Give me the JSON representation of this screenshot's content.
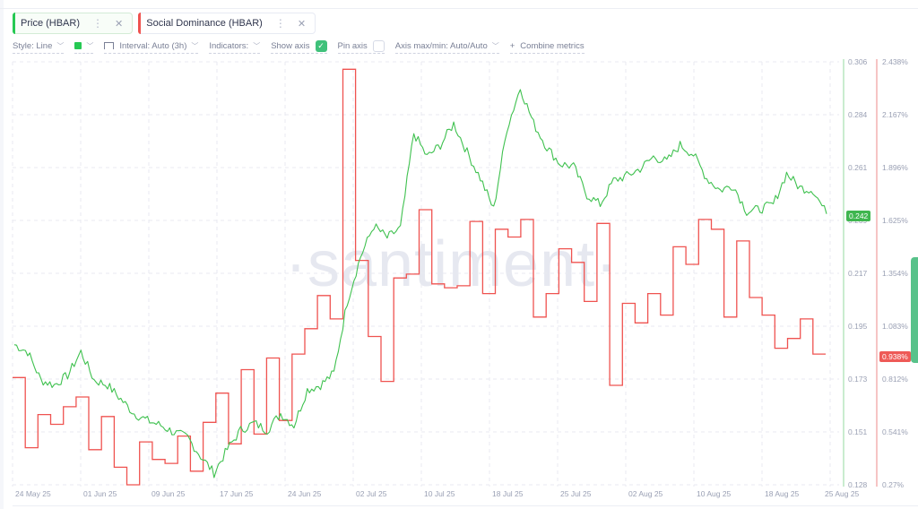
{
  "metrics": [
    {
      "label": "Price (HBAR)",
      "color": "#26c953",
      "menu_icon": "more-vertical-icon",
      "close_icon": "close-icon"
    },
    {
      "label": "Social Dominance (HBAR)",
      "color": "#ef5350",
      "menu_icon": "more-vertical-icon",
      "close_icon": "close-icon"
    }
  ],
  "toolbar": {
    "style": "Style: Line",
    "interval": "Interval: Auto (3h)",
    "indicators": "Indicators:",
    "show_axis": "Show axis",
    "show_axis_checked": true,
    "pin_axis": "Pin axis",
    "pin_axis_checked": false,
    "axis_maxmin": "Axis max/min: Auto/Auto",
    "combine_plus": "+",
    "combine": "Combine metrics",
    "chevron": "⌄",
    "color_swatch": "#26c953"
  },
  "watermark": "·santiment·",
  "chart_data": {
    "type": "line",
    "title": "",
    "xlabel": "",
    "ylabel": "",
    "categories": [
      "24 May 25",
      "01 Jun 25",
      "09 Jun 25",
      "17 Jun 25",
      "24 Jun 25",
      "02 Jul 25",
      "10 Jul 25",
      "18 Jul 25",
      "25 Jul 25",
      "02 Aug 25",
      "10 Aug 25",
      "18 Aug 25",
      "25 Aug 25"
    ],
    "x_ticks": [
      "24 May 25",
      "01 Jun 25",
      "09 Jun 25",
      "17 Jun 25",
      "24 Jun 25",
      "02 Jul 25",
      "10 Jul 25",
      "18 Jul 25",
      "25 Jul 25",
      "02 Aug 25",
      "10 Aug 25",
      "18 Aug 25",
      "25 Aug 25"
    ],
    "grid": true,
    "legend": [
      "Price (HBAR)",
      "Social Dominance (HBAR)"
    ],
    "series": [
      {
        "name": "Price (HBAR)",
        "color": "#26c953",
        "axis": "left-of-right",
        "ylim": [
          0.128,
          0.306
        ],
        "ticks": [
          "0.306",
          "0.284",
          "0.261",
          "0.239",
          "0.217",
          "0.195",
          "0.173",
          "0.151",
          "0.128"
        ],
        "last_value": "0.242",
        "values": [
          0.187,
          0.184,
          0.172,
          0.17,
          0.174,
          0.184,
          0.172,
          0.17,
          0.164,
          0.158,
          0.155,
          0.153,
          0.15,
          0.148,
          0.14,
          0.133,
          0.143,
          0.151,
          0.154,
          0.151,
          0.158,
          0.153,
          0.168,
          0.17,
          0.175,
          0.205,
          0.224,
          0.237,
          0.232,
          0.236,
          0.276,
          0.266,
          0.271,
          0.28,
          0.268,
          0.257,
          0.244,
          0.278,
          0.295,
          0.28,
          0.27,
          0.263,
          0.262,
          0.25,
          0.246,
          0.256,
          0.258,
          0.261,
          0.266,
          0.264,
          0.271,
          0.267,
          0.257,
          0.252,
          0.254,
          0.243,
          0.244,
          0.246,
          0.259,
          0.253,
          0.252,
          0.242
        ]
      },
      {
        "name": "Social Dominance (HBAR)",
        "color": "#ef5350",
        "axis": "right",
        "ylim": [
          0.27,
          2.438
        ],
        "ticks": [
          "2.438%",
          "2.167%",
          "1.896%",
          "1.625%",
          "1.354%",
          "1.083%",
          "0.812%",
          "0.541%",
          "0.27%"
        ],
        "last_value": "0.938%",
        "values": [
          0.82,
          0.46,
          0.63,
          0.58,
          0.67,
          0.72,
          0.45,
          0.62,
          0.36,
          0.27,
          0.49,
          0.4,
          0.38,
          0.52,
          0.34,
          0.59,
          0.74,
          0.48,
          0.86,
          0.53,
          0.92,
          0.6,
          0.94,
          1.07,
          1.24,
          1.12,
          2.4,
          1.42,
          1.03,
          0.8,
          1.33,
          1.35,
          1.68,
          1.3,
          1.28,
          1.29,
          1.62,
          1.25,
          1.58,
          1.54,
          1.63,
          1.13,
          1.25,
          1.48,
          1.41,
          1.21,
          1.61,
          0.78,
          1.2,
          1.1,
          1.25,
          1.14,
          1.49,
          1.4,
          1.63,
          1.58,
          1.13,
          1.52,
          1.23,
          1.14,
          0.97,
          1.02,
          1.12,
          0.94
        ]
      }
    ]
  },
  "axis": {
    "price_ticks": [
      "0.306",
      "0.284",
      "0.261",
      "0.239",
      "0.217",
      "0.195",
      "0.173",
      "0.151",
      "0.128"
    ],
    "dominance_ticks": [
      "2.438%",
      "2.167%",
      "1.896%",
      "1.625%",
      "1.354%",
      "1.083%",
      "0.812%",
      "0.541%",
      "0.27%"
    ],
    "price_badge": "0.242",
    "dominance_badge": "0.938%"
  },
  "x_axis": [
    "24 May 25",
    "01 Jun 25",
    "09 Jun 25",
    "17 Jun 25",
    "24 Jun 25",
    "02 Jul 25",
    "10 Jul 25",
    "18 Jul 25",
    "25 Jul 25",
    "02 Aug 25",
    "10 Aug 25",
    "18 Aug 25",
    "25 Aug 25"
  ]
}
